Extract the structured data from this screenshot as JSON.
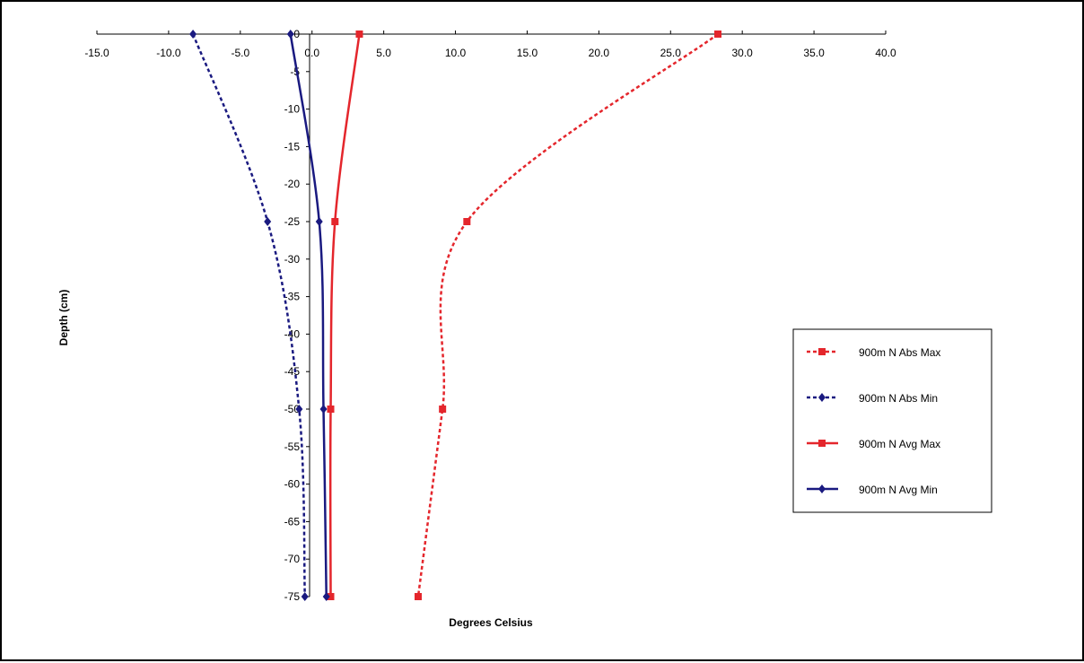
{
  "chart_data": {
    "type": "line",
    "title": "",
    "xlabel": "Degrees Celsius",
    "ylabel": "Depth (cm)",
    "xlim": [
      -15.0,
      40.0
    ],
    "ylim": [
      -75,
      0
    ],
    "x_ticks": [
      "-15.0",
      "-10.0",
      "-5.0",
      "0.0",
      "5.0",
      "10.0",
      "15.0",
      "20.0",
      "25.0",
      "30.0",
      "35.0",
      "40.0"
    ],
    "y_ticks": [
      "0",
      "-5",
      "-10",
      "-15",
      "-20",
      "-25",
      "-30",
      "-35",
      "-40",
      "-45",
      "-50",
      "-55",
      "-60",
      "-65",
      "-70",
      "-75"
    ],
    "x_axis_position": "top",
    "grid": false,
    "legend_position": "right",
    "series": [
      {
        "name": "900m N Abs Max",
        "color": "#e4262c",
        "dashed": true,
        "marker": "square",
        "points": [
          {
            "x": 28.3,
            "y": 0
          },
          {
            "x": 10.8,
            "y": -25
          },
          {
            "x": 9.1,
            "y": -50
          },
          {
            "x": 7.4,
            "y": -75
          }
        ]
      },
      {
        "name": "900m N Abs Min",
        "color": "#1a1a80",
        "dashed": true,
        "marker": "diamond",
        "points": [
          {
            "x": -8.3,
            "y": 0
          },
          {
            "x": -3.1,
            "y": -25
          },
          {
            "x": -0.9,
            "y": -50
          },
          {
            "x": -0.5,
            "y": -75
          }
        ]
      },
      {
        "name": "900m N Avg Max",
        "color": "#e4262c",
        "dashed": false,
        "marker": "square",
        "points": [
          {
            "x": 3.3,
            "y": 0
          },
          {
            "x": 1.6,
            "y": -25
          },
          {
            "x": 1.3,
            "y": -50
          },
          {
            "x": 1.3,
            "y": -75
          }
        ]
      },
      {
        "name": "900m N Avg Min",
        "color": "#1a1a80",
        "dashed": false,
        "marker": "diamond",
        "points": [
          {
            "x": -1.5,
            "y": 0
          },
          {
            "x": 0.5,
            "y": -25
          },
          {
            "x": 0.8,
            "y": -50
          },
          {
            "x": 1.0,
            "y": -75
          }
        ]
      }
    ]
  }
}
